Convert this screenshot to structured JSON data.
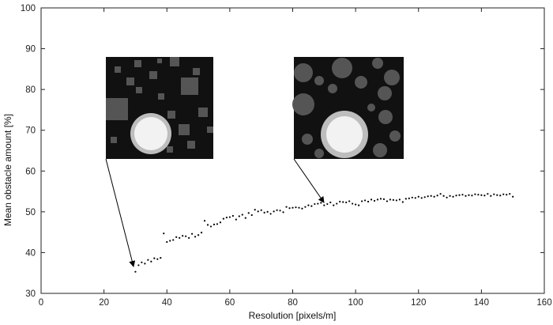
{
  "chart_data": {
    "type": "scatter",
    "title": "",
    "xlabel": "Resolution [pixels/m]",
    "ylabel": "Mean obstacle amount [%]",
    "xlim": [
      0,
      160
    ],
    "ylim": [
      30,
      100
    ],
    "xticks": [
      0,
      20,
      40,
      60,
      80,
      100,
      120,
      140,
      160
    ],
    "yticks": [
      30,
      40,
      50,
      60,
      70,
      80,
      90,
      100
    ],
    "grid": false,
    "legend": "none",
    "marker_color": "#000000",
    "series": [
      {
        "x": [
          30,
          31,
          32,
          33,
          34,
          35,
          36,
          37,
          38,
          39,
          40,
          41,
          42,
          43,
          44,
          45,
          46,
          47,
          48,
          49,
          50,
          51,
          52,
          53,
          54,
          55,
          56,
          57,
          58,
          59,
          60,
          61,
          62,
          63,
          64,
          65,
          66,
          67,
          68,
          69,
          70,
          71,
          72,
          73,
          74,
          75,
          76,
          77,
          78,
          79,
          80,
          81,
          82,
          83,
          84,
          85,
          86,
          87,
          88,
          89,
          90,
          91,
          92,
          93,
          94,
          95,
          96,
          97,
          98,
          99,
          100,
          101,
          102,
          103,
          104,
          105,
          106,
          107,
          108,
          109,
          110,
          111,
          112,
          113,
          114,
          115,
          116,
          117,
          118,
          119,
          120,
          121,
          122,
          123,
          124,
          125,
          126,
          127,
          128,
          129,
          130,
          131,
          132,
          133,
          134,
          135,
          136,
          137,
          138,
          139,
          140,
          141,
          142,
          143,
          144,
          145,
          146,
          147,
          148,
          149,
          150
        ],
        "values": [
          35.3,
          36.9,
          37.6,
          37.3,
          38.2,
          37.8,
          38.6,
          38.4,
          38.7,
          44.7,
          42.6,
          42.9,
          43.1,
          43.8,
          43.6,
          44.1,
          44.0,
          43.6,
          44.6,
          43.9,
          44.3,
          44.9,
          47.8,
          46.8,
          46.4,
          46.9,
          47.0,
          47.4,
          48.3,
          48.6,
          48.7,
          49.0,
          48.1,
          48.9,
          49.3,
          48.5,
          49.7,
          49.2,
          50.5,
          50.1,
          50.4,
          49.8,
          50.0,
          49.5,
          50.1,
          50.4,
          50.3,
          49.9,
          51.2,
          50.9,
          51.0,
          51.1,
          51.0,
          50.8,
          51.2,
          51.6,
          51.4,
          51.9,
          52.0,
          52.2,
          51.6,
          51.9,
          52.3,
          51.6,
          52.0,
          52.5,
          52.4,
          52.3,
          52.6,
          52.0,
          51.8,
          51.6,
          52.6,
          52.8,
          52.5,
          53.0,
          52.7,
          53.0,
          53.2,
          53.1,
          52.6,
          53.0,
          52.9,
          52.8,
          53.0,
          52.4,
          53.2,
          53.3,
          53.5,
          53.4,
          53.7,
          53.4,
          53.6,
          53.8,
          53.9,
          53.7,
          54.0,
          54.4,
          53.9,
          53.5,
          53.9,
          53.7,
          54.0,
          54.1,
          54.2,
          53.9,
          54.1,
          54.0,
          54.3,
          54.2,
          54.1,
          54.0,
          54.4,
          53.9,
          54.3,
          54.1,
          54.0,
          54.3,
          54.2,
          54.4,
          53.7
        ]
      }
    ],
    "annotations": [
      {
        "label": "inset-image-low-resolution",
        "points_to": {
          "x": 29,
          "y": 35.5
        }
      },
      {
        "label": "inset-image-high-resolution",
        "points_to": {
          "x": 91,
          "y": 51.5
        }
      }
    ]
  },
  "insets": [
    {
      "background": "#111111",
      "disc_color": "#f2f2f2",
      "ring_color": "#bdbdbd",
      "obstacle_color": "#555555"
    },
    {
      "background": "#111111",
      "disc_color": "#f2f2f2",
      "ring_color": "#bdbdbd",
      "obstacle_color": "#555555"
    }
  ]
}
